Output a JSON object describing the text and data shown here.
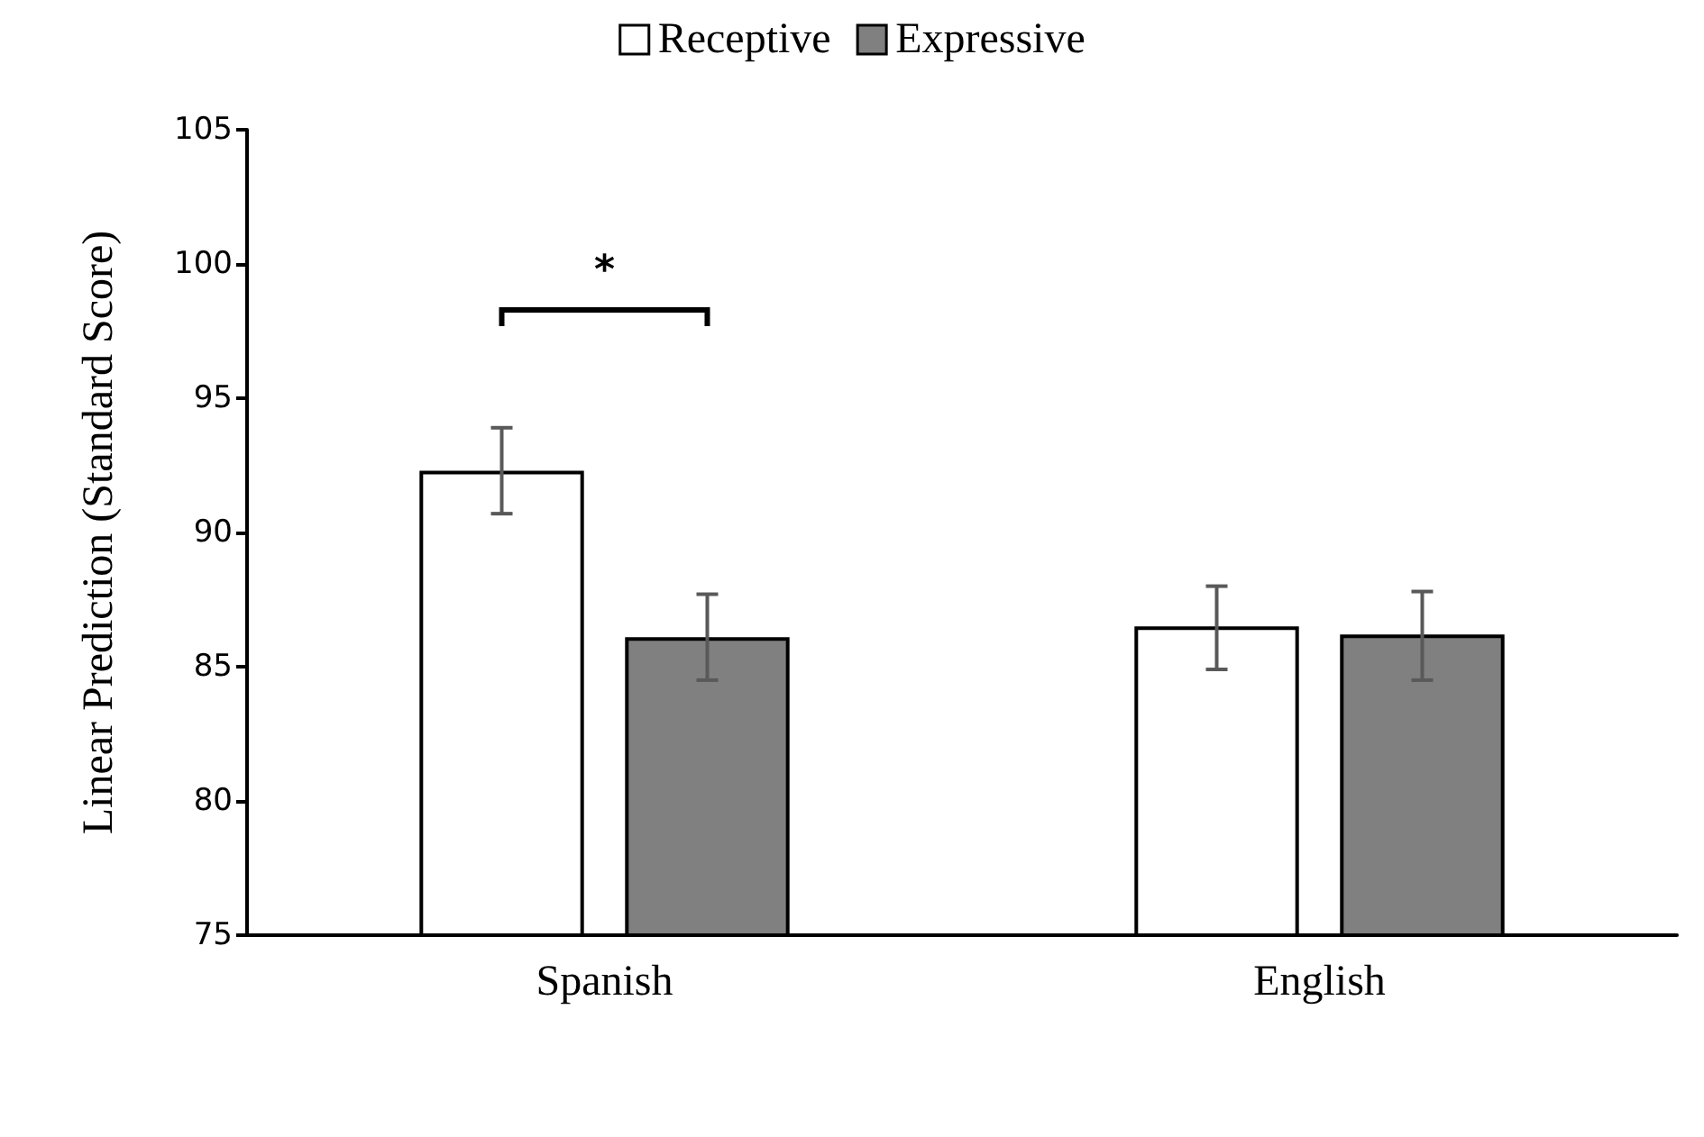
{
  "chart_data": {
    "type": "bar",
    "ylabel": "Linear Prediction (Standard Score)",
    "categories": [
      "Spanish",
      "English"
    ],
    "series": [
      {
        "name": "Receptive",
        "color": "#ffffff",
        "values": [
          92.3,
          86.5
        ],
        "errors": [
          [
            90.7,
            93.9
          ],
          [
            84.9,
            88.0
          ]
        ]
      },
      {
        "name": "Expressive",
        "color": "#808080",
        "values": [
          86.1,
          86.2
        ],
        "errors": [
          [
            84.5,
            87.7
          ],
          [
            84.5,
            87.8
          ]
        ]
      }
    ],
    "ylim": [
      75,
      105
    ],
    "yticks": [
      75,
      80,
      85,
      90,
      95,
      100,
      105
    ],
    "grid": false,
    "legend": "top",
    "annotations": [
      "*"
    ]
  }
}
